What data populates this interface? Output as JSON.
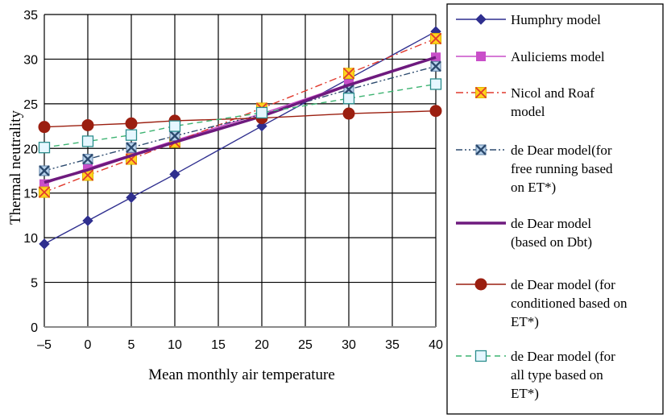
{
  "chart_data": {
    "type": "line",
    "xlabel": "Mean monthly air temperature",
    "ylabel": "Thermal neutrality",
    "xlim": [
      -5,
      40
    ],
    "ylim": [
      0,
      35
    ],
    "x_ticks": [
      -5,
      0,
      5,
      10,
      15,
      20,
      25,
      30,
      35,
      40
    ],
    "y_ticks": [
      0,
      5,
      10,
      15,
      20,
      25,
      30,
      35
    ],
    "x_tick_labels": [
      "–5",
      "0",
      "5",
      "10",
      "15",
      "20",
      "25",
      "30",
      "35",
      "40"
    ],
    "y_tick_labels": [
      "0",
      "5",
      "10",
      "15",
      "20",
      "25",
      "30",
      "35"
    ],
    "grid": true,
    "legend_position": "right",
    "x": [
      -5,
      0,
      5,
      10,
      20,
      30,
      40
    ],
    "series": [
      {
        "name": "Humphry model",
        "legend_lines": [
          "Humphry model"
        ],
        "color": "#2f2f8f",
        "marker": "diamond",
        "dash": "",
        "values": [
          9.3,
          11.9,
          14.5,
          17.1,
          22.5,
          27.8,
          33.1
        ]
      },
      {
        "name": "Auliciems model",
        "legend_lines": [
          "Auliciems model"
        ],
        "color": "#c94fc9",
        "marker": "square",
        "dash": "",
        "values": [
          16.0,
          17.8,
          19.3,
          20.9,
          23.9,
          27.2,
          30.2
        ]
      },
      {
        "name": "Nicol and Roaf model",
        "legend_lines": [
          "Nicol and Roaf",
          "model"
        ],
        "color": "#e03a2e",
        "marker": "x-square",
        "dash": "9,4,2,4",
        "values": [
          15.1,
          17.0,
          18.8,
          20.7,
          24.5,
          28.4,
          32.3
        ]
      },
      {
        "name": "de Dear model(for free running based on ET*)",
        "legend_lines": [
          "de Dear model(for",
          "free running based",
          "on ET*)"
        ],
        "color": "#2c4a6e",
        "marker": "x-box",
        "dash": "8,3,2,3,2,3",
        "values": [
          17.5,
          18.8,
          20.1,
          21.4,
          23.8,
          26.6,
          29.2
        ]
      },
      {
        "name": "de Dear model (based on Dbt)",
        "legend_lines": [
          "de Dear model",
          "(based on Dbt)"
        ],
        "color": "#6e1a7e",
        "marker": "none",
        "dash": "",
        "width": 3.5,
        "values": [
          16.2,
          17.6,
          19.2,
          20.7,
          23.6,
          27.1,
          30.2
        ]
      },
      {
        "name": "de Dear model (for conditioned based on ET*)",
        "legend_lines": [
          "de Dear model (for",
          "conditioned based on",
          "ET*)"
        ],
        "color": "#9b1f10",
        "marker": "circle",
        "dash": "",
        "values": [
          22.4,
          22.6,
          22.8,
          23.1,
          23.4,
          23.9,
          24.2
        ]
      },
      {
        "name": "de Dear model (for all type based on ET*)",
        "legend_lines": [
          "de Dear model (for",
          "all type based on",
          "ET*)"
        ],
        "color": "#3cb371",
        "marker": "open-square",
        "dash": "7,5",
        "values": [
          20.1,
          20.8,
          21.5,
          22.5,
          24.0,
          25.6,
          27.2
        ]
      }
    ]
  }
}
